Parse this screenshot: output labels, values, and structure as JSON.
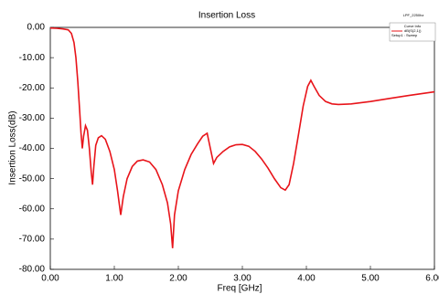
{
  "chart_data": {
    "type": "line",
    "title": "Insertion Loss",
    "corner_label": "LPF_2250hz",
    "legend_title": "Curve Info",
    "legend_note": "Setup1 : Sweep",
    "x_label": "Freq [GHz]",
    "y_label": "Insertion Loss(dB)",
    "xlim": [
      0,
      6
    ],
    "ylim": [
      -80,
      0
    ],
    "xticks": [
      {
        "value": 0,
        "label": "0.00"
      },
      {
        "value": 1,
        "label": "1.00"
      },
      {
        "value": 2,
        "label": "2.00"
      },
      {
        "value": 3,
        "label": "3.00"
      },
      {
        "value": 4,
        "label": "4.00"
      },
      {
        "value": 5,
        "label": "5.00"
      },
      {
        "value": 6,
        "label": "6.00"
      }
    ],
    "yticks": [
      {
        "value": 0,
        "label": "0.00"
      },
      {
        "value": -10,
        "label": "-10.00"
      },
      {
        "value": -20,
        "label": "-20.00"
      },
      {
        "value": -30,
        "label": "-30.00"
      },
      {
        "value": -40,
        "label": "-40.00"
      },
      {
        "value": -50,
        "label": "-50.00"
      },
      {
        "value": -60,
        "label": "-60.00"
      },
      {
        "value": -70,
        "label": "-70.00"
      },
      {
        "value": -80,
        "label": "-80.00"
      }
    ],
    "grid": false,
    "x": [
      0.0,
      0.1,
      0.2,
      0.28,
      0.33,
      0.37,
      0.4,
      0.43,
      0.46,
      0.48,
      0.5,
      0.52,
      0.55,
      0.58,
      0.61,
      0.64,
      0.66,
      0.68,
      0.71,
      0.75,
      0.8,
      0.86,
      0.93,
      1.0,
      1.05,
      1.1,
      1.14,
      1.2,
      1.28,
      1.36,
      1.45,
      1.55,
      1.65,
      1.75,
      1.83,
      1.88,
      1.91,
      1.94,
      2.0,
      2.1,
      2.2,
      2.3,
      2.38,
      2.45,
      2.5,
      2.55,
      2.6,
      2.7,
      2.8,
      2.9,
      3.0,
      3.1,
      3.2,
      3.3,
      3.4,
      3.5,
      3.6,
      3.67,
      3.73,
      3.8,
      3.88,
      3.95,
      4.02,
      4.07,
      4.12,
      4.2,
      4.3,
      4.4,
      4.5,
      4.7,
      5.0,
      5.3,
      5.6,
      6.0
    ],
    "series": [
      {
        "name": "dB(S(2,1))",
        "color": "#e8141a",
        "values": [
          -0.2,
          -0.3,
          -0.5,
          -0.8,
          -2,
          -5,
          -10,
          -18,
          -28,
          -35,
          -40,
          -36,
          -32.5,
          -34,
          -40,
          -48,
          -52,
          -46,
          -39,
          -36.5,
          -35.8,
          -37,
          -41,
          -47,
          -54,
          -62,
          -56,
          -50,
          -46,
          -44.2,
          -43.8,
          -44.5,
          -47,
          -52,
          -58,
          -65,
          -73,
          -62,
          -54,
          -47,
          -42,
          -38.5,
          -36,
          -35,
          -40,
          -45,
          -43,
          -41,
          -39.5,
          -38.8,
          -38.7,
          -39.3,
          -41,
          -43.5,
          -46.5,
          -50,
          -53,
          -53.8,
          -52,
          -45,
          -35,
          -26,
          -19.5,
          -17.5,
          -19.5,
          -22.5,
          -24.5,
          -25.3,
          -25.5,
          -25.3,
          -24.5,
          -23.5,
          -22.5,
          -21.3
        ]
      }
    ]
  }
}
